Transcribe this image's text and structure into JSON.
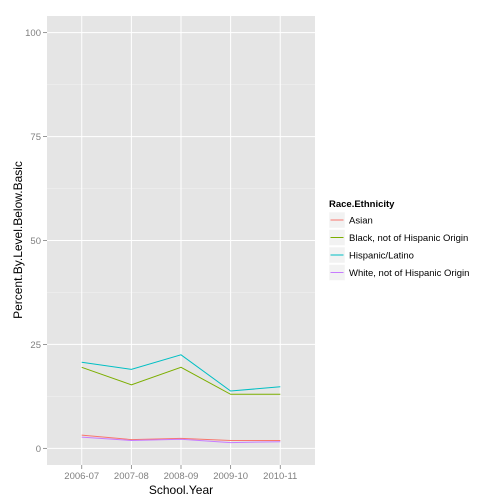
{
  "chart_data": {
    "type": "line",
    "xlabel": "School.Year",
    "ylabel": "Percent.By.Level.Below.Basic",
    "categories": [
      "2006-07",
      "2007-08",
      "2008-09",
      "2009-10",
      "2010-11"
    ],
    "ylim": [
      -4,
      104
    ],
    "yticks": [
      0,
      25,
      50,
      75,
      100
    ],
    "grid": true,
    "legend": {
      "title": "Race.Ethnicity",
      "position": "right"
    },
    "series": [
      {
        "name": "Asian",
        "color": "#F8766D",
        "values": [
          3.2,
          2.1,
          2.4,
          1.9,
          1.9
        ]
      },
      {
        "name": "Black, not of Hispanic Origin",
        "color": "#7CAE00",
        "values": [
          19.5,
          15.3,
          19.5,
          13.0,
          13.0
        ]
      },
      {
        "name": "Hispanic/Latino",
        "color": "#00BFC4",
        "values": [
          20.7,
          19.0,
          22.5,
          13.8,
          14.8
        ]
      },
      {
        "name": "White, not of Hispanic Origin",
        "color": "#C77CFF",
        "values": [
          2.7,
          1.9,
          2.2,
          1.4,
          1.6
        ]
      }
    ]
  }
}
